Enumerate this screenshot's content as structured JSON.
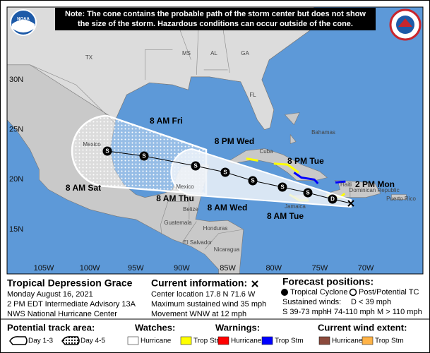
{
  "note": [
    "Note: The cone contains the probable path of the storm center but does not show",
    "the size of the storm. Hazardous conditions can occur outside of the cone."
  ],
  "noaa_logo": "NOAA",
  "latitude_labels": [
    "30N",
    "25N",
    "20N",
    "15N"
  ],
  "longitude_labels": [
    "105W",
    "100W",
    "95W",
    "90W",
    "85W",
    "80W",
    "75W",
    "70W"
  ],
  "place_labels": [
    "TX",
    "MS",
    "AL",
    "GA",
    "FL",
    "Mexico",
    "Mexico",
    "Cuba",
    "Bahamas",
    "Haiti",
    "Dominican Republic",
    "Jamaica",
    "Belize",
    "Guatemala",
    "Honduras",
    "El Salvador",
    "Nicaragua",
    "Puerto Rico"
  ],
  "forecast_points": [
    {
      "time": "2 PM Mon",
      "intensity": "D"
    },
    {
      "time": "8 AM Tue",
      "intensity": "S"
    },
    {
      "time": "8 PM Tue",
      "intensity": "S"
    },
    {
      "time": "8 AM Wed",
      "intensity": "S"
    },
    {
      "time": "8 PM Wed",
      "intensity": "S"
    },
    {
      "time": "8 AM Thu",
      "intensity": "S"
    },
    {
      "time": "8 AM Fri",
      "intensity": "S"
    },
    {
      "time": "8 AM Sat",
      "intensity": "S"
    }
  ],
  "storm": {
    "name": "Tropical Depression Grace",
    "date": "Monday August 16, 2021",
    "advisory": "2 PM EDT Intermediate Advisory 13A",
    "office": "NWS National Hurricane Center"
  },
  "current": {
    "heading": "Current information:",
    "lines": [
      "Center location 17.8 N 71.6 W",
      "Maximum sustained wind 35 mph",
      "Movement WNW at 12 mph"
    ]
  },
  "forecast_legend": {
    "heading": "Forecast positions:",
    "tropical_cyclone": "Tropical Cyclone",
    "post_tc": "Post/Potential TC",
    "winds_heading": "Sustained winds:",
    "categories": [
      "D < 39 mph",
      "S 39-73 mph",
      "H 74-110 mph",
      "M > 110 mph"
    ]
  },
  "legend": {
    "track_area": {
      "heading": "Potential track area:",
      "items": [
        "Day 1-3",
        "Day 4-5"
      ]
    },
    "watches": {
      "heading": "Watches:",
      "items": [
        "Hurricane",
        "Trop Stm"
      ]
    },
    "warnings": {
      "heading": "Warnings:",
      "items": [
        "Hurricane",
        "Trop Stm"
      ]
    },
    "wind_extent": {
      "heading": "Current wind extent:",
      "items": [
        "Hurricane",
        "Trop Stm"
      ]
    }
  }
}
